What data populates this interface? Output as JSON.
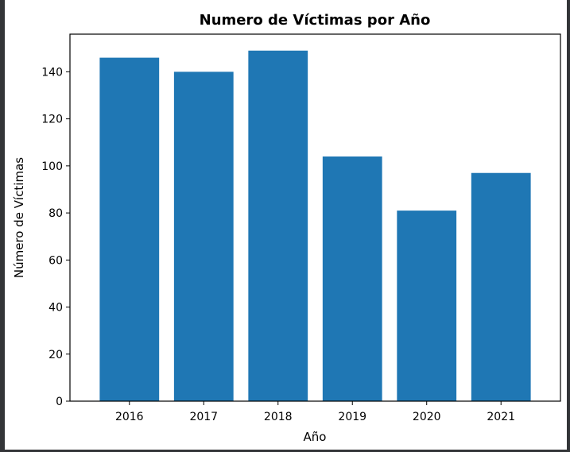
{
  "chart_data": {
    "type": "bar",
    "title": "Numero de Víctimas por Año",
    "xlabel": "Año",
    "ylabel": "Número de Víctimas",
    "categories": [
      "2016",
      "2017",
      "2018",
      "2019",
      "2020",
      "2021"
    ],
    "values": [
      146,
      140,
      149,
      104,
      81,
      97
    ],
    "ylim": [
      0,
      156
    ],
    "yticks": [
      0,
      20,
      40,
      60,
      80,
      100,
      120,
      140
    ],
    "bar_color": "#1f77b4",
    "grid": false
  }
}
